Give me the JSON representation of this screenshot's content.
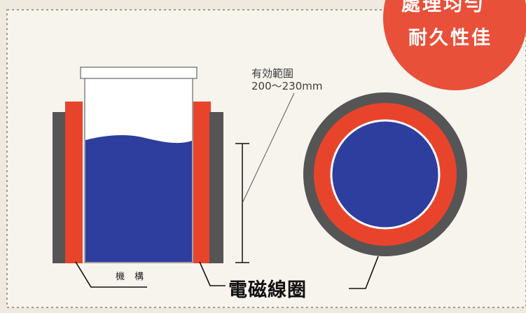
{
  "badge": {
    "line1": "處理均勻",
    "line2": "耐久性佳",
    "color": "#e8503a"
  },
  "range_note": {
    "line1": "有効範圍",
    "line2": "200～230mm"
  },
  "labels": {
    "mechanism": "機構",
    "coil": "電磁線圈"
  },
  "colors": {
    "background": "#efe9df",
    "panel": "#f7f4ee",
    "coil_outer": "#555555",
    "coil_inner": "#e8442c",
    "liquid": "#2e3e9e"
  }
}
